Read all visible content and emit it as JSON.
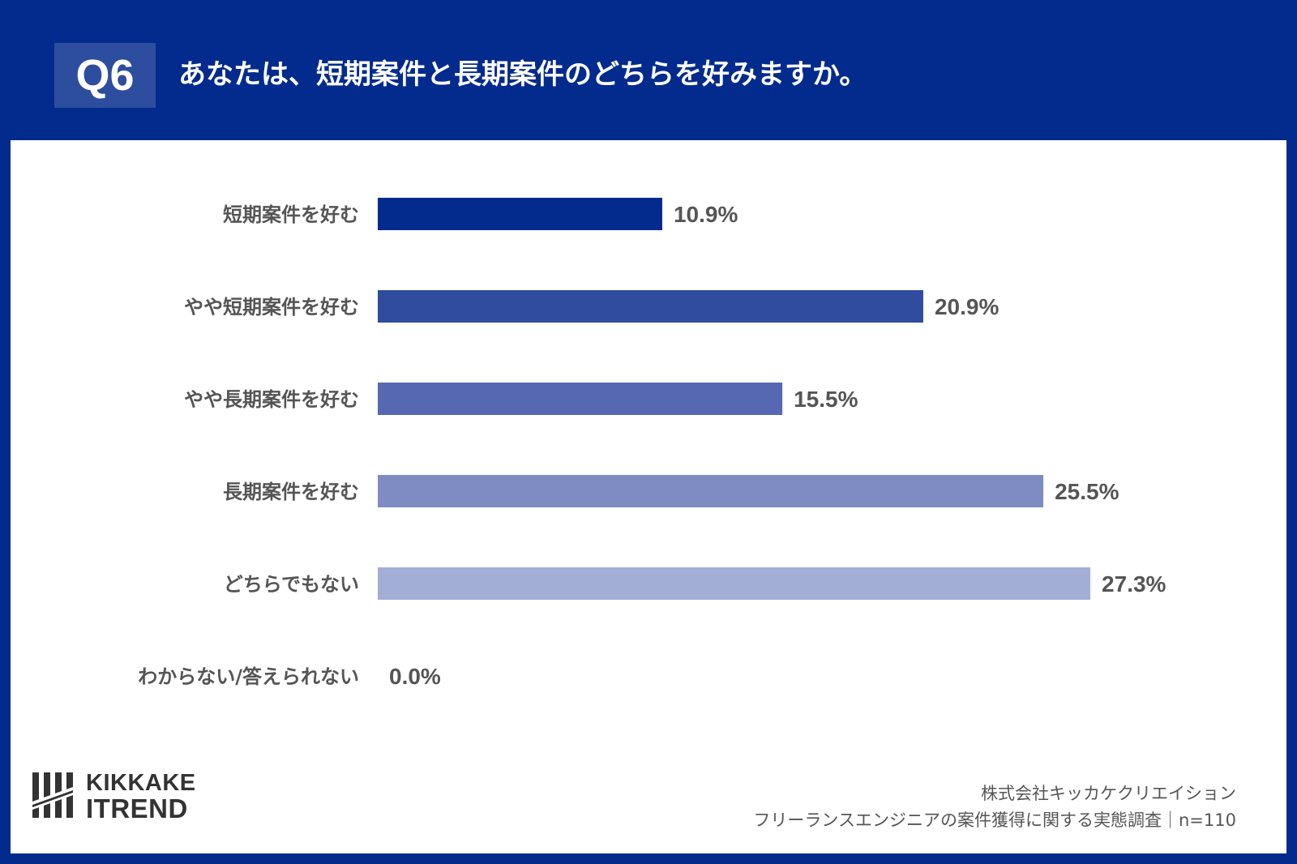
{
  "header": {
    "badge": "Q6",
    "question": "あなたは、短期案件と長期案件のどちらを好みますか。"
  },
  "chart_data": {
    "type": "bar",
    "orientation": "horizontal",
    "categories": [
      "短期案件を好む",
      "やや短期案件を好む",
      "やや長期案件を好む",
      "長期案件を好む",
      "どちらでもない",
      "わからない/答えられない"
    ],
    "values": [
      10.9,
      20.9,
      15.5,
      25.5,
      27.3,
      0.0
    ],
    "value_labels": [
      "10.9%",
      "20.9%",
      "15.5%",
      "25.5%",
      "27.3%",
      "0.0%"
    ],
    "colors": [
      "#032b8d",
      "#304c9e",
      "#5568b1",
      "#7f8cc4",
      "#a3aed7",
      "#c8cfe8"
    ],
    "unit": "%",
    "xlim": [
      0,
      30
    ],
    "grid": false
  },
  "footer": {
    "logo_line1": "KIKKAKE",
    "logo_line2": "TREND",
    "company": "株式会社キッカケクリエイション",
    "survey": "フリーランスエンジニアの案件獲得に関する実態調査｜n=110"
  }
}
